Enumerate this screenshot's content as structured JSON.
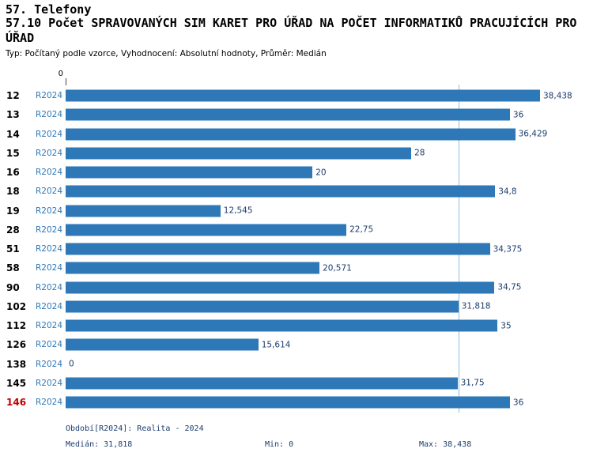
{
  "header": {
    "category": "57. Telefony",
    "title": "57.10 Počet SPRAVOVANÝCH SIM KARET PRO ÚŘAD NA POČET INFORMATIKŮ PRACUJÍCÍCH PRO ÚŘAD",
    "meta": "Typ: Počítaný podle vzorce, Vyhodnocení: Absolutní hodnoty, Průměr: Medián"
  },
  "chart_data": {
    "type": "bar",
    "orientation": "horizontal",
    "title": "57.10 Počet SPRAVOVANÝCH SIM KARET PRO ÚŘAD NA POČET INFORMATIKŮ PRACUJÍCÍCH PRO ÚŘAD",
    "categories": [
      "12",
      "13",
      "14",
      "15",
      "16",
      "18",
      "19",
      "28",
      "51",
      "58",
      "90",
      "102",
      "112",
      "126",
      "138",
      "145",
      "146"
    ],
    "series": [
      {
        "name": "R2024",
        "values": [
          38.438,
          36,
          36.429,
          28,
          20,
          34.8,
          12.545,
          22.75,
          34.375,
          20.571,
          34.75,
          31.818,
          35,
          15.614,
          0,
          31.75,
          36
        ],
        "value_labels": [
          "38,438",
          "36",
          "36,429",
          "28",
          "20",
          "34,8",
          "12,545",
          "22,75",
          "34,375",
          "20,571",
          "34,75",
          "31,818",
          "35",
          "15,614",
          "0",
          "31,75",
          "36"
        ]
      }
    ],
    "highlighted_category": "146",
    "xlim": [
      0,
      38.438
    ],
    "x_axis_origin_label": "0",
    "median": 31.818,
    "grid": false,
    "legend": "none"
  },
  "footer": {
    "period_line": "Období[R2024]: Realita - 2024",
    "median_line": "Medián: 31,818",
    "min_line": "Min: 0",
    "max_line": "Max: 38,438"
  },
  "colors": {
    "bar": "#2E78B8",
    "median_line": "#93BBDB",
    "row_id": "#000000",
    "row_id_highlight": "#C00000",
    "period_label": "#2E78B8",
    "value_label": "#1C3D6E",
    "footer_text": "#1C3D6E"
  }
}
